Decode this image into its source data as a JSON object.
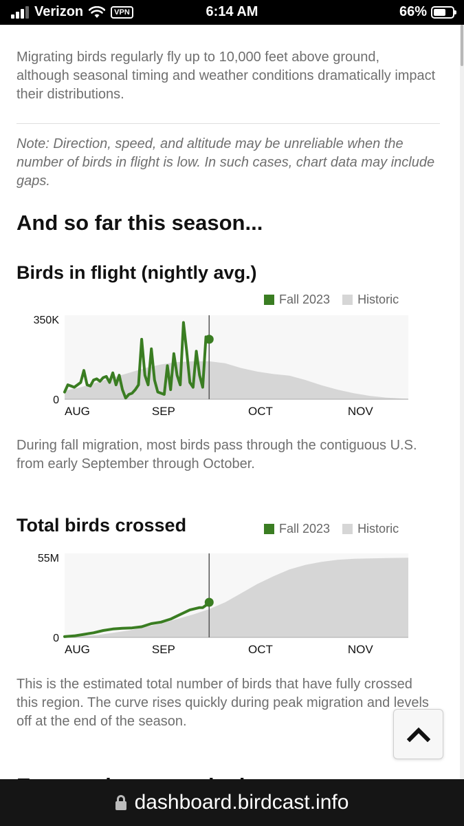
{
  "status_bar": {
    "carrier": "Verizon",
    "vpn": "VPN",
    "time": "6:14 AM",
    "battery": "66%",
    "battery_level": 0.66
  },
  "content": {
    "intro": "Migrating birds regularly fly up to 10,000 feet above ground, although seasonal timing and weather conditions dramatically impact their distributions.",
    "note": "Note: Direction, speed, and altitude may be unreliable when the number of birds in flight is low. In such cases, chart data may include gaps.",
    "season_heading": "And so far this season...",
    "flight_heading": "Birds in flight (nightly avg.)",
    "flight_text": "During fall migration, most birds pass through the contiguous U.S. from early September through October.",
    "total_heading": "Total birds crossed",
    "total_text": "This is the estimated total number of birds that have fully crossed this region. The curve rises quickly during peak migration and levels off at the end of the season.",
    "next_heading": "Expected nocturnal migrants"
  },
  "legend": {
    "current": "Fall 2023",
    "historic": "Historic"
  },
  "colors": {
    "current": "#3a7d22",
    "historic": "#d6d6d6",
    "background": "#f7f7f7"
  },
  "chart_data": [
    {
      "type": "area",
      "title": "Birds in flight (nightly avg.)",
      "x_ticks": [
        "AUG",
        "SEP",
        "OCT",
        "NOV"
      ],
      "y_ticks": [
        "0",
        "350K"
      ],
      "ylim": [
        0,
        350000
      ],
      "x_unit": "days since Aug 1",
      "xlim": [
        0,
        107
      ],
      "current_day": 45,
      "series": [
        {
          "name": "Historic",
          "kind": "area",
          "points": [
            [
              0,
              35000
            ],
            [
              5,
              50000
            ],
            [
              10,
              70000
            ],
            [
              15,
              90000
            ],
            [
              20,
              110000
            ],
            [
              25,
              130000
            ],
            [
              30,
              145000
            ],
            [
              35,
              155000
            ],
            [
              40,
              158000
            ],
            [
              45,
              158000
            ],
            [
              50,
              150000
            ],
            [
              55,
              130000
            ],
            [
              60,
              115000
            ],
            [
              65,
              105000
            ],
            [
              70,
              98000
            ],
            [
              75,
              80000
            ],
            [
              80,
              58000
            ],
            [
              85,
              40000
            ],
            [
              90,
              25000
            ],
            [
              95,
              14000
            ],
            [
              100,
              7000
            ],
            [
              105,
              3000
            ],
            [
              107,
              2000
            ]
          ]
        },
        {
          "name": "Fall 2023",
          "kind": "line",
          "points": [
            [
              0,
              30000
            ],
            [
              1,
              60000
            ],
            [
              2,
              55000
            ],
            [
              3,
              50000
            ],
            [
              4,
              60000
            ],
            [
              5,
              70000
            ],
            [
              6,
              120000
            ],
            [
              7,
              60000
            ],
            [
              8,
              55000
            ],
            [
              9,
              80000
            ],
            [
              10,
              85000
            ],
            [
              11,
              75000
            ],
            [
              12,
              90000
            ],
            [
              13,
              95000
            ],
            [
              14,
              70000
            ],
            [
              15,
              110000
            ],
            [
              16,
              60000
            ],
            [
              17,
              100000
            ],
            [
              18,
              40000
            ],
            [
              19,
              5000
            ],
            [
              20,
              20000
            ],
            [
              21,
              25000
            ],
            [
              22,
              40000
            ],
            [
              23,
              60000
            ],
            [
              24,
              250000
            ],
            [
              25,
              100000
            ],
            [
              26,
              60000
            ],
            [
              27,
              210000
            ],
            [
              28,
              80000
            ],
            [
              29,
              30000
            ],
            [
              30,
              25000
            ],
            [
              31,
              20000
            ],
            [
              32,
              140000
            ],
            [
              33,
              40000
            ],
            [
              34,
              190000
            ],
            [
              35,
              100000
            ],
            [
              36,
              60000
            ],
            [
              37,
              320000
            ],
            [
              38,
              200000
            ],
            [
              39,
              70000
            ],
            [
              40,
              50000
            ],
            [
              41,
              200000
            ],
            [
              42,
              100000
            ],
            [
              43,
              50000
            ],
            [
              44,
              260000
            ],
            [
              45,
              250000
            ]
          ]
        }
      ]
    },
    {
      "type": "area",
      "title": "Total birds crossed",
      "x_ticks": [
        "AUG",
        "SEP",
        "OCT",
        "NOV"
      ],
      "y_ticks": [
        "0",
        "55M"
      ],
      "ylim": [
        0,
        55000000
      ],
      "x_unit": "days since Aug 1",
      "xlim": [
        0,
        107
      ],
      "current_day": 45,
      "series": [
        {
          "name": "Historic",
          "kind": "area",
          "points": [
            [
              0,
              200000
            ],
            [
              10,
              1500000
            ],
            [
              20,
              4500000
            ],
            [
              30,
              9000000
            ],
            [
              40,
              15000000
            ],
            [
              45,
              18500000
            ],
            [
              50,
              23000000
            ],
            [
              55,
              29000000
            ],
            [
              60,
              35000000
            ],
            [
              65,
              40000000
            ],
            [
              70,
              44500000
            ],
            [
              75,
              47500000
            ],
            [
              80,
              49500000
            ],
            [
              85,
              50800000
            ],
            [
              90,
              51500000
            ],
            [
              100,
              52000000
            ],
            [
              107,
              52200000
            ]
          ]
        },
        {
          "name": "Fall 2023",
          "kind": "line",
          "points": [
            [
              0,
              500000
            ],
            [
              3,
              1000000
            ],
            [
              6,
              2000000
            ],
            [
              9,
              3000000
            ],
            [
              12,
              4500000
            ],
            [
              15,
              5500000
            ],
            [
              18,
              6000000
            ],
            [
              21,
              6200000
            ],
            [
              24,
              7000000
            ],
            [
              27,
              9000000
            ],
            [
              30,
              10000000
            ],
            [
              33,
              12000000
            ],
            [
              36,
              15000000
            ],
            [
              39,
              18000000
            ],
            [
              42,
              19500000
            ],
            [
              43,
              19500000
            ],
            [
              44,
              21000000
            ],
            [
              45,
              23000000
            ]
          ]
        }
      ]
    }
  ],
  "address_bar": {
    "url": "dashboard.birdcast.info"
  }
}
